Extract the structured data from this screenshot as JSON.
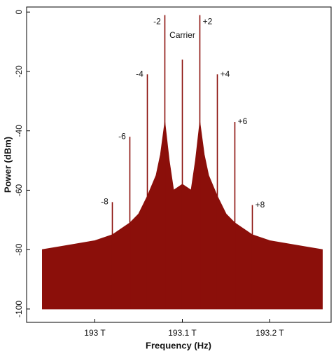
{
  "chart_data": {
    "type": "spectrum",
    "x_label": "Frequency (Hz)",
    "y_label": "Power (dBm)",
    "xlim": [
      192.922,
      193.27
    ],
    "ylim": [
      -104.5,
      1.7
    ],
    "xticks": [
      {
        "value": 193,
        "label": "193 T"
      },
      {
        "value": 193.1,
        "label": "193.1 T"
      },
      {
        "value": 193.2,
        "label": "193.2 T"
      }
    ],
    "yticks": [
      0,
      -20,
      -40,
      -60,
      -80,
      -100
    ],
    "color": "#8b0f0a",
    "floor": {
      "x": [
        192.94,
        192.96,
        192.98,
        193.0,
        193.02,
        193.03,
        193.04,
        193.05,
        193.06,
        193.07,
        193.075,
        193.08,
        193.085,
        193.09,
        193.1,
        193.11,
        193.115,
        193.12,
        193.125,
        193.13,
        193.14,
        193.15,
        193.16,
        193.17,
        193.18,
        193.2,
        193.22,
        193.24,
        193.26
      ],
      "values": [
        -80,
        -79,
        -78,
        -77,
        -75,
        -73,
        -71,
        -68,
        -62,
        -55,
        -48,
        -37,
        -50,
        -60,
        -58,
        -60,
        -50,
        -37,
        -48,
        -55,
        -62,
        -68,
        -71,
        -73,
        -75,
        -77,
        -78,
        -79,
        -80
      ]
    },
    "lines": {
      "x": [
        193.02,
        193.04,
        193.06,
        193.08,
        193.1,
        193.12,
        193.14,
        193.16,
        193.18
      ],
      "values": [
        -64,
        -42,
        -21,
        -1,
        -16,
        -1,
        -21,
        -37,
        -65
      ],
      "labels": [
        "-8",
        "-6",
        "-4",
        "-2",
        "Carrier",
        "+2",
        "+4",
        "+6",
        "+8"
      ]
    }
  }
}
